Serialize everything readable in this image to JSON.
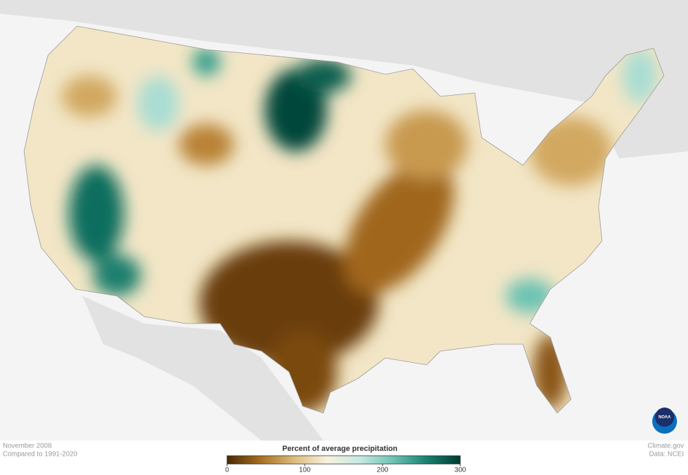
{
  "header": {
    "period": "November 2008",
    "baseline": "Compared to 1991-2020"
  },
  "legend": {
    "title": "Percent of average precipitation",
    "range": [
      0,
      300
    ],
    "ticks": [
      0,
      100,
      200,
      300
    ],
    "colors": [
      "#4a2804",
      "#a86d1f",
      "#dcbb7a",
      "#f7f2df",
      "#c6e9e2",
      "#6cc2b3",
      "#17806f",
      "#003b31"
    ]
  },
  "footer": {
    "source": "Climate.gov",
    "data": "Data: NCEI",
    "logo": "NOAA"
  }
}
